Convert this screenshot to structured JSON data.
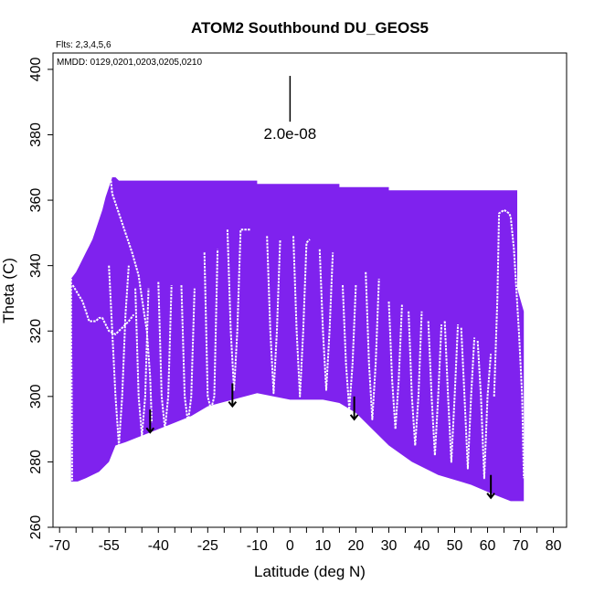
{
  "chart_data": {
    "type": "area",
    "title": "ATOM2 Southbound DU_GEOS5",
    "flights_note": "Flts: 2,3,4,5,6",
    "dates_note": "MMDD: 0129,0201,0203,0205,0210",
    "xlabel": "Latitude (deg N)",
    "ylabel": "Theta (C)",
    "xlim": [
      -72,
      84
    ],
    "ylim": [
      260,
      405
    ],
    "x_ticks": [
      -70,
      -55,
      -40,
      -25,
      -10,
      0,
      10,
      20,
      30,
      40,
      50,
      60,
      70,
      80
    ],
    "x_tick_labels": [
      "-70",
      "-55",
      "-40",
      "-25",
      "-10",
      "0",
      "10",
      "20",
      "30",
      "40",
      "50",
      "60",
      "70",
      "80"
    ],
    "x_minor_ticks": [
      -65,
      -60,
      -50,
      -45,
      -35,
      -30,
      -20,
      -15,
      -5,
      5,
      15,
      25,
      35,
      45,
      55,
      65,
      75
    ],
    "y_ticks": [
      260,
      280,
      300,
      320,
      340,
      360,
      380,
      400
    ],
    "y_tick_labels": [
      "260",
      "280",
      "300",
      "320",
      "340",
      "360",
      "380",
      "400"
    ],
    "scale_key": {
      "label": "2.0e-08",
      "x": 0,
      "y_top": 398,
      "y_bottom": 384
    },
    "fill_color": "#7f22ee",
    "fill_color_dark": "#6a28d8",
    "line_color": "#ffffff",
    "curtain_top": [
      [
        -66.5,
        336
      ],
      [
        -65,
        338
      ],
      [
        -64,
        340
      ],
      [
        -63,
        342
      ],
      [
        -62,
        344
      ],
      [
        -61,
        346
      ],
      [
        -60,
        348
      ],
      [
        -59,
        351
      ],
      [
        -58,
        354
      ],
      [
        -57,
        357
      ],
      [
        -56,
        361
      ],
      [
        -55,
        364
      ],
      [
        -54,
        367
      ],
      [
        -53,
        367
      ],
      [
        -52,
        366
      ],
      [
        -10,
        366
      ],
      [
        -10,
        365
      ],
      [
        15,
        365
      ],
      [
        15,
        364
      ],
      [
        30,
        364
      ],
      [
        30,
        363
      ],
      [
        69,
        363
      ],
      [
        69,
        333
      ],
      [
        71,
        326
      ],
      [
        71,
        275
      ]
    ],
    "curtain_bottom": [
      [
        71,
        268
      ],
      [
        67,
        268
      ],
      [
        62,
        270
      ],
      [
        55,
        273
      ],
      [
        45,
        276
      ],
      [
        37,
        280
      ],
      [
        30,
        285
      ],
      [
        25,
        290
      ],
      [
        20,
        295
      ],
      [
        15,
        298
      ],
      [
        10,
        299
      ],
      [
        0,
        299
      ],
      [
        -10,
        301
      ],
      [
        -25,
        297
      ],
      [
        -30,
        294
      ],
      [
        -35,
        292
      ],
      [
        -40,
        290
      ],
      [
        -45,
        288
      ],
      [
        -50,
        286
      ],
      [
        -53,
        285
      ],
      [
        -55,
        280
      ],
      [
        -58,
        277
      ],
      [
        -62,
        275
      ],
      [
        -64.5,
        274
      ],
      [
        -66.5,
        274
      ]
    ],
    "profiles": [
      {
        "name": "south-envelope",
        "points": [
          [
            -54.5,
            367
          ],
          [
            -54,
            362
          ],
          [
            -52,
            356
          ],
          [
            -50,
            350
          ],
          [
            -48,
            344
          ],
          [
            -46,
            337
          ],
          [
            -45,
            330
          ],
          [
            -43.5,
            320
          ],
          [
            -42.5,
            306
          ],
          [
            -42,
            292
          ]
        ]
      },
      {
        "name": "second-envelope",
        "points": [
          [
            -66,
            334
          ],
          [
            -63,
            329
          ],
          [
            -61,
            323
          ],
          [
            -59,
            323
          ],
          [
            -58,
            324
          ],
          [
            -57,
            324
          ],
          [
            -55,
            320
          ],
          [
            -53,
            319
          ],
          [
            -51,
            321
          ],
          [
            -49,
            323
          ],
          [
            -47.5,
            325
          ]
        ]
      },
      {
        "name": "left-edge",
        "points": [
          [
            -66.5,
            336
          ],
          [
            -66.5,
            320
          ],
          [
            -66.3,
            300
          ],
          [
            -66.2,
            280
          ],
          [
            -66.2,
            274
          ]
        ]
      },
      {
        "name": "d1",
        "points": [
          [
            -55,
            340
          ],
          [
            -54,
            320
          ],
          [
            -53,
            300
          ],
          [
            -52,
            285
          ],
          [
            -51,
            300
          ],
          [
            -50,
            325
          ],
          [
            -49,
            340
          ]
        ]
      },
      {
        "name": "d2",
        "points": [
          [
            -47,
            333
          ],
          [
            -46,
            300
          ],
          [
            -45,
            288
          ],
          [
            -44,
            300
          ],
          [
            -43,
            333
          ]
        ]
      },
      {
        "name": "d3",
        "points": [
          [
            -40,
            335
          ],
          [
            -39,
            300
          ],
          [
            -38,
            290
          ],
          [
            -37,
            300
          ],
          [
            -36,
            334
          ]
        ]
      },
      {
        "name": "d4",
        "points": [
          [
            -33,
            334
          ],
          [
            -32,
            300
          ],
          [
            -31,
            292
          ],
          [
            -30,
            300
          ],
          [
            -29,
            333
          ]
        ]
      },
      {
        "name": "d5",
        "points": [
          [
            -26,
            344
          ],
          [
            -25,
            300
          ],
          [
            -24,
            296
          ],
          [
            -23,
            300
          ],
          [
            -22,
            345
          ]
        ]
      },
      {
        "name": "d6",
        "points": [
          [
            -19,
            351
          ],
          [
            -18,
            320
          ],
          [
            -17,
            302
          ],
          [
            -16,
            320
          ],
          [
            -15,
            351
          ],
          [
            -12,
            351
          ]
        ]
      },
      {
        "name": "d7",
        "points": [
          [
            -7,
            349
          ],
          [
            -6,
            320
          ],
          [
            -5,
            301
          ],
          [
            -4,
            320
          ],
          [
            -3,
            348
          ]
        ]
      },
      {
        "name": "d8",
        "points": [
          [
            1,
            349
          ],
          [
            2,
            320
          ],
          [
            3,
            300
          ],
          [
            4,
            320
          ],
          [
            5,
            347
          ],
          [
            6,
            348
          ]
        ]
      },
      {
        "name": "d9",
        "points": [
          [
            9,
            345
          ],
          [
            10,
            320
          ],
          [
            11,
            302
          ],
          [
            12,
            320
          ],
          [
            13,
            344
          ]
        ]
      },
      {
        "name": "d10",
        "points": [
          [
            16,
            334
          ],
          [
            17,
            310
          ],
          [
            18,
            296
          ],
          [
            19,
            310
          ],
          [
            20,
            334
          ]
        ]
      },
      {
        "name": "d11",
        "points": [
          [
            23,
            338
          ],
          [
            24,
            310
          ],
          [
            25,
            293
          ],
          [
            26,
            310
          ],
          [
            27,
            336
          ]
        ]
      },
      {
        "name": "d12",
        "points": [
          [
            30,
            329
          ],
          [
            31,
            305
          ],
          [
            32,
            290
          ],
          [
            33,
            305
          ],
          [
            34,
            328
          ]
        ]
      },
      {
        "name": "d13",
        "points": [
          [
            36,
            326
          ],
          [
            37,
            300
          ],
          [
            38,
            285
          ],
          [
            39,
            300
          ],
          [
            40,
            326
          ]
        ]
      },
      {
        "name": "d14",
        "points": [
          [
            42,
            323
          ],
          [
            43,
            300
          ],
          [
            44,
            282
          ],
          [
            45,
            300
          ],
          [
            46,
            322
          ]
        ]
      },
      {
        "name": "d15",
        "points": [
          [
            47,
            323
          ],
          [
            48,
            300
          ],
          [
            49,
            280
          ],
          [
            50,
            300
          ],
          [
            51,
            322
          ]
        ]
      },
      {
        "name": "d16",
        "points": [
          [
            52,
            321
          ],
          [
            53,
            300
          ],
          [
            54,
            278
          ],
          [
            55,
            300
          ],
          [
            56,
            318
          ]
        ]
      },
      {
        "name": "d17",
        "points": [
          [
            57,
            317
          ],
          [
            58,
            300
          ],
          [
            59,
            275
          ],
          [
            60,
            300
          ],
          [
            61,
            313
          ]
        ]
      },
      {
        "name": "north-end",
        "points": [
          [
            62,
            300
          ],
          [
            63,
            330
          ],
          [
            63.5,
            356
          ],
          [
            65,
            357
          ],
          [
            66.5,
            356
          ],
          [
            67,
            355
          ],
          [
            68,
            345
          ],
          [
            69.5,
            320
          ],
          [
            70.5,
            300
          ],
          [
            71,
            275
          ]
        ]
      }
    ],
    "arrows": [
      {
        "x": -42.5,
        "y_top": 296,
        "y_bottom": 289
      },
      {
        "x": -17.5,
        "y_top": 304,
        "y_bottom": 297
      },
      {
        "x": 19.5,
        "y_top": 300,
        "y_bottom": 293
      },
      {
        "x": 61,
        "y_top": 276,
        "y_bottom": 269
      }
    ]
  }
}
